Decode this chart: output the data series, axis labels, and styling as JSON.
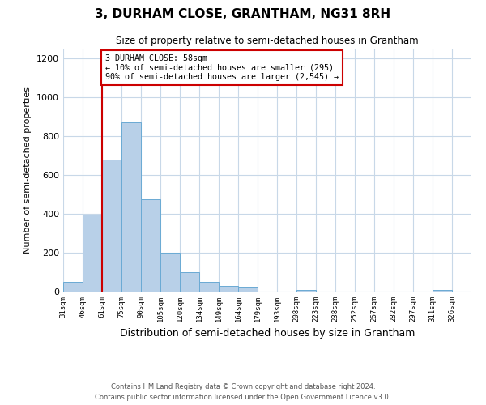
{
  "title": "3, DURHAM CLOSE, GRANTHAM, NG31 8RH",
  "subtitle": "Size of property relative to semi-detached houses in Grantham",
  "xlabel": "Distribution of semi-detached houses by size in Grantham",
  "ylabel": "Number of semi-detached properties",
  "bar_values": [
    50,
    395,
    680,
    870,
    475,
    200,
    100,
    50,
    30,
    25,
    0,
    0,
    10,
    0,
    0,
    0,
    0,
    0,
    0,
    10,
    0
  ],
  "bar_labels": [
    "31sqm",
    "46sqm",
    "61sqm",
    "75sqm",
    "90sqm",
    "105sqm",
    "120sqm",
    "134sqm",
    "149sqm",
    "164sqm",
    "179sqm",
    "193sqm",
    "208sqm",
    "223sqm",
    "238sqm",
    "252sqm",
    "267sqm",
    "282sqm",
    "297sqm",
    "311sqm",
    "326sqm"
  ],
  "bar_color": "#b8d0e8",
  "bar_edge_color": "#6aaad4",
  "property_line_label": "3 DURHAM CLOSE: 58sqm",
  "annotation_line1": "← 10% of semi-detached houses are smaller (295)",
  "annotation_line2": "90% of semi-detached houses are larger (2,545) →",
  "annotation_box_color": "#ffffff",
  "annotation_box_edge": "#cc0000",
  "vline_color": "#cc0000",
  "ylim": [
    0,
    1250
  ],
  "yticks": [
    0,
    200,
    400,
    600,
    800,
    1000,
    1200
  ],
  "footer1": "Contains HM Land Registry data © Crown copyright and database right 2024.",
  "footer2": "Contains public sector information licensed under the Open Government Licence v3.0.",
  "background_color": "#ffffff",
  "grid_color": "#c8d8e8",
  "title_fontsize": 11,
  "subtitle_fontsize": 8.5,
  "ylabel_fontsize": 8,
  "xlabel_fontsize": 9
}
